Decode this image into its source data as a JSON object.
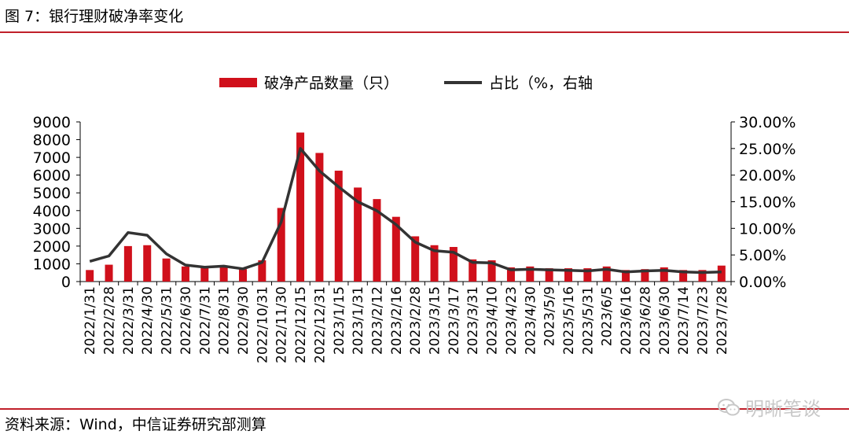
{
  "header": {
    "title": "图 7：银行理财破净率变化"
  },
  "footer": {
    "source": "资料来源：Wind，中信证券研究部测算"
  },
  "watermark": {
    "text": "明晰笔谈",
    "icon": "wechat-icon"
  },
  "colors": {
    "bar": "#d0101b",
    "line": "#333333",
    "rule": "#c0202a",
    "text": "#000000"
  },
  "chart_data": {
    "type": "bar",
    "title": "",
    "legend": [
      "破净产品数量（只）",
      "占比（%，右轴"
    ],
    "legend_position": "top",
    "grid": false,
    "categories": [
      "2022/1/31",
      "2022/2/28",
      "2022/3/31",
      "2022/4/30",
      "2022/5/31",
      "2022/6/30",
      "2022/7/31",
      "2022/8/31",
      "2022/9/30",
      "2022/10/31",
      "2022/11/30",
      "2022/12/15",
      "2022/12/31",
      "2023/1/15",
      "2023/1/31",
      "2023/2/12",
      "2023/2/16",
      "2023/2/28",
      "2023/3/15",
      "2023/3/17",
      "2023/3/31",
      "2023/4/10",
      "2023/4/23",
      "2023/4/30",
      "2023/5/9",
      "2023/5/16",
      "2023/5/31",
      "2023/6/5",
      "2023/6/16",
      "2023/6/28",
      "2023/6/30",
      "2023/7/14",
      "2023/7/23",
      "2023/7/28"
    ],
    "series": [
      {
        "name": "破净产品数量（只）",
        "type": "bar",
        "axis": "left",
        "values": [
          650,
          950,
          2000,
          2050,
          1300,
          850,
          800,
          850,
          700,
          1200,
          4150,
          8400,
          7250,
          6250,
          5300,
          4650,
          3650,
          2550,
          2050,
          1950,
          1250,
          1200,
          800,
          850,
          750,
          750,
          750,
          850,
          650,
          700,
          800,
          650,
          650,
          900
        ]
      },
      {
        "name": "占比（%，右轴",
        "type": "line",
        "axis": "right",
        "values": [
          3.8,
          4.8,
          9.2,
          8.7,
          5.2,
          3.1,
          2.7,
          2.9,
          2.4,
          3.6,
          11.2,
          25.0,
          20.8,
          17.8,
          15.0,
          13.3,
          10.7,
          7.4,
          5.8,
          5.5,
          3.6,
          3.5,
          2.2,
          2.3,
          2.2,
          2.1,
          2.0,
          2.3,
          1.8,
          2.0,
          2.1,
          1.8,
          1.7,
          1.8
        ]
      }
    ],
    "y_left": {
      "min": 0,
      "max": 9000,
      "ticks": [
        "0",
        "1000",
        "2000",
        "3000",
        "4000",
        "5000",
        "6000",
        "7000",
        "8000",
        "9000"
      ]
    },
    "y_right": {
      "min": 0,
      "max": 30,
      "ticks": [
        "0.00%",
        "5.00%",
        "10.00%",
        "15.00%",
        "20.00%",
        "25.00%",
        "30.00%"
      ]
    }
  }
}
